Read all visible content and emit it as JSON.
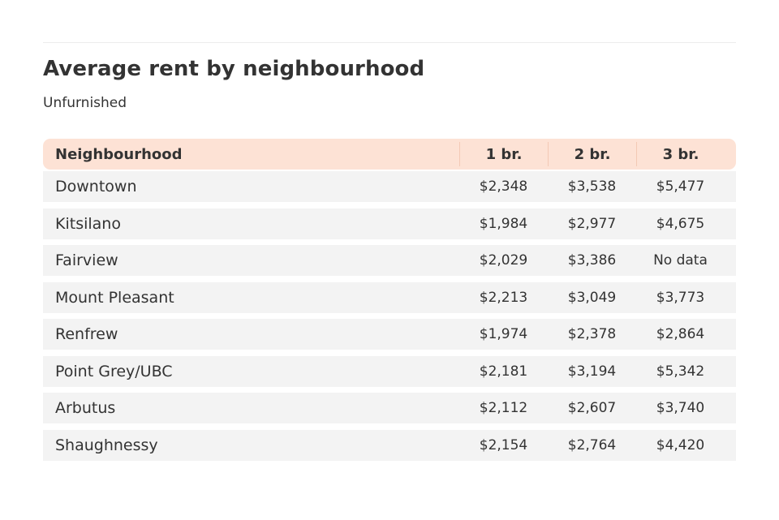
{
  "chart_data": {
    "type": "table",
    "title": "Average rent by neighbourhood",
    "subtitle": "Unfurnished",
    "columns": [
      "Neighbourhood",
      "1 br.",
      "2 br.",
      "3 br."
    ],
    "rows": [
      [
        "Downtown",
        "$2,348",
        "$3,538",
        "$5,477"
      ],
      [
        "Kitsilano",
        "$1,984",
        "$2,977",
        "$4,675"
      ],
      [
        "Fairview",
        "$2,029",
        "$3,386",
        "No data"
      ],
      [
        "Mount Pleasant",
        "$2,213",
        "$3,049",
        "$3,773"
      ],
      [
        "Renfrew",
        "$1,974",
        "$2,378",
        "$2,864"
      ],
      [
        "Point Grey/UBC",
        "$2,181",
        "$3,194",
        "$5,342"
      ],
      [
        "Arbutus",
        "$2,112",
        "$2,607",
        "$3,740"
      ],
      [
        "Shaughnessy",
        "$2,154",
        "$2,764",
        "$4,420"
      ]
    ]
  },
  "colors": {
    "header_background": "#fde2d5",
    "stripe_background": "#f3f3f3",
    "text": "#333333"
  }
}
